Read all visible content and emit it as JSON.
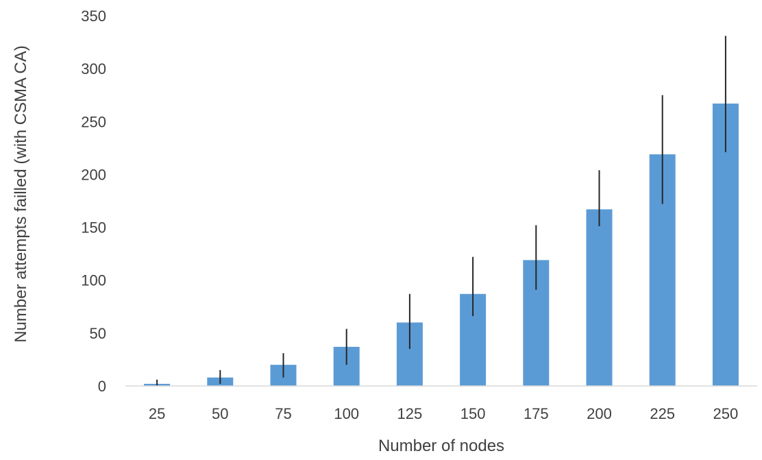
{
  "chart_data": {
    "type": "bar",
    "title": "",
    "xlabel": "Number of nodes",
    "ylabel": "Number attempts failled (with CSMA CA)",
    "categories": [
      "25",
      "50",
      "75",
      "100",
      "125",
      "150",
      "175",
      "200",
      "225",
      "250"
    ],
    "series": [
      {
        "values": [
          2,
          8,
          20,
          37,
          60,
          87,
          119,
          167,
          219,
          267
        ],
        "error_low": [
          0,
          2,
          8,
          20,
          35,
          66,
          91,
          151,
          172,
          221
        ],
        "error_high": [
          6,
          15,
          31,
          54,
          87,
          122,
          152,
          204,
          275,
          331
        ]
      }
    ],
    "ylim": [
      0,
      350
    ],
    "yticks": [
      "0",
      "50",
      "100",
      "150",
      "200",
      "250",
      "300",
      "350"
    ],
    "grid": false,
    "legend": false,
    "colors": {
      "bar": "#5B9BD5",
      "error_bar": "#262626",
      "axis_line": "#D9D9D9",
      "text": "#404040"
    }
  }
}
